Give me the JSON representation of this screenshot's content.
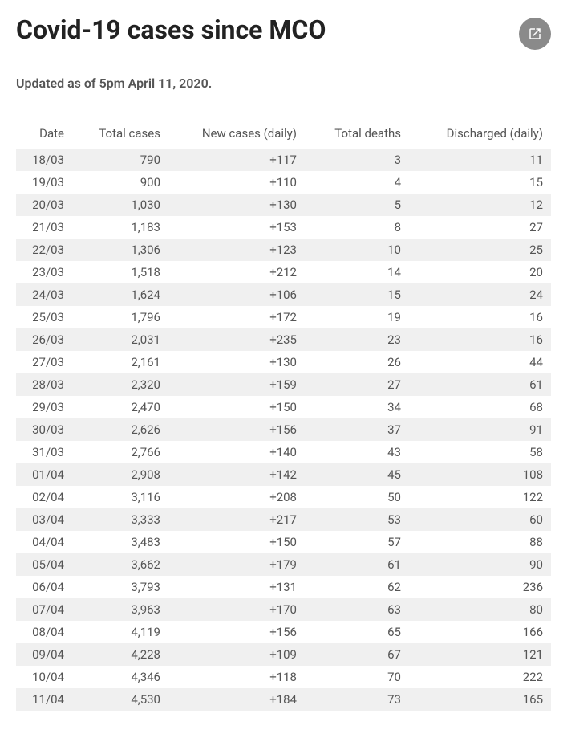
{
  "title": "Covid-19 cases since MCO",
  "subtitle": "Updated as of 5pm April 11, 2020.",
  "share_icon_name": "share-icon",
  "table": {
    "columns": [
      "Date",
      "Total cases",
      "New cases (daily)",
      "Total deaths",
      "Discharged (daily)"
    ],
    "column_align": [
      "right",
      "right",
      "right",
      "right",
      "right"
    ],
    "header_color": "#555555",
    "text_color": "#555555",
    "row_odd_bg": "#f0f0f0",
    "row_even_bg": "#ffffff",
    "fontsize": 15,
    "rows": [
      [
        "18/03",
        "790",
        "+117",
        "3",
        "11"
      ],
      [
        "19/03",
        "900",
        "+110",
        "4",
        "15"
      ],
      [
        "20/03",
        "1,030",
        "+130",
        "5",
        "12"
      ],
      [
        "21/03",
        "1,183",
        "+153",
        "8",
        "27"
      ],
      [
        "22/03",
        "1,306",
        "+123",
        "10",
        "25"
      ],
      [
        "23/03",
        "1,518",
        "+212",
        "14",
        "20"
      ],
      [
        "24/03",
        "1,624",
        "+106",
        "15",
        "24"
      ],
      [
        "25/03",
        "1,796",
        "+172",
        "19",
        "16"
      ],
      [
        "26/03",
        "2,031",
        "+235",
        "23",
        "16"
      ],
      [
        "27/03",
        "2,161",
        "+130",
        "26",
        "44"
      ],
      [
        "28/03",
        "2,320",
        "+159",
        "27",
        "61"
      ],
      [
        "29/03",
        "2,470",
        "+150",
        "34",
        "68"
      ],
      [
        "30/03",
        "2,626",
        "+156",
        "37",
        "91"
      ],
      [
        "31/03",
        "2,766",
        "+140",
        "43",
        "58"
      ],
      [
        "01/04",
        "2,908",
        "+142",
        "45",
        "108"
      ],
      [
        "02/04",
        "3,116",
        "+208",
        "50",
        "122"
      ],
      [
        "03/04",
        "3,333",
        "+217",
        "53",
        "60"
      ],
      [
        "04/04",
        "3,483",
        "+150",
        "57",
        "88"
      ],
      [
        "05/04",
        "3,662",
        "+179",
        "61",
        "90"
      ],
      [
        "06/04",
        "3,793",
        "+131",
        "62",
        "236"
      ],
      [
        "07/04",
        "3,963",
        "+170",
        "63",
        "80"
      ],
      [
        "08/04",
        "4,119",
        "+156",
        "65",
        "166"
      ],
      [
        "09/04",
        "4,228",
        "+109",
        "67",
        "121"
      ],
      [
        "10/04",
        "4,346",
        "+118",
        "70",
        "222"
      ],
      [
        "11/04",
        "4,530",
        "+184",
        "73",
        "165"
      ]
    ]
  },
  "colors": {
    "title": "#222222",
    "subtitle": "#555555",
    "background": "#ffffff",
    "share_button_bg": "#8a8a8a",
    "share_icon_fill": "#ffffff"
  }
}
